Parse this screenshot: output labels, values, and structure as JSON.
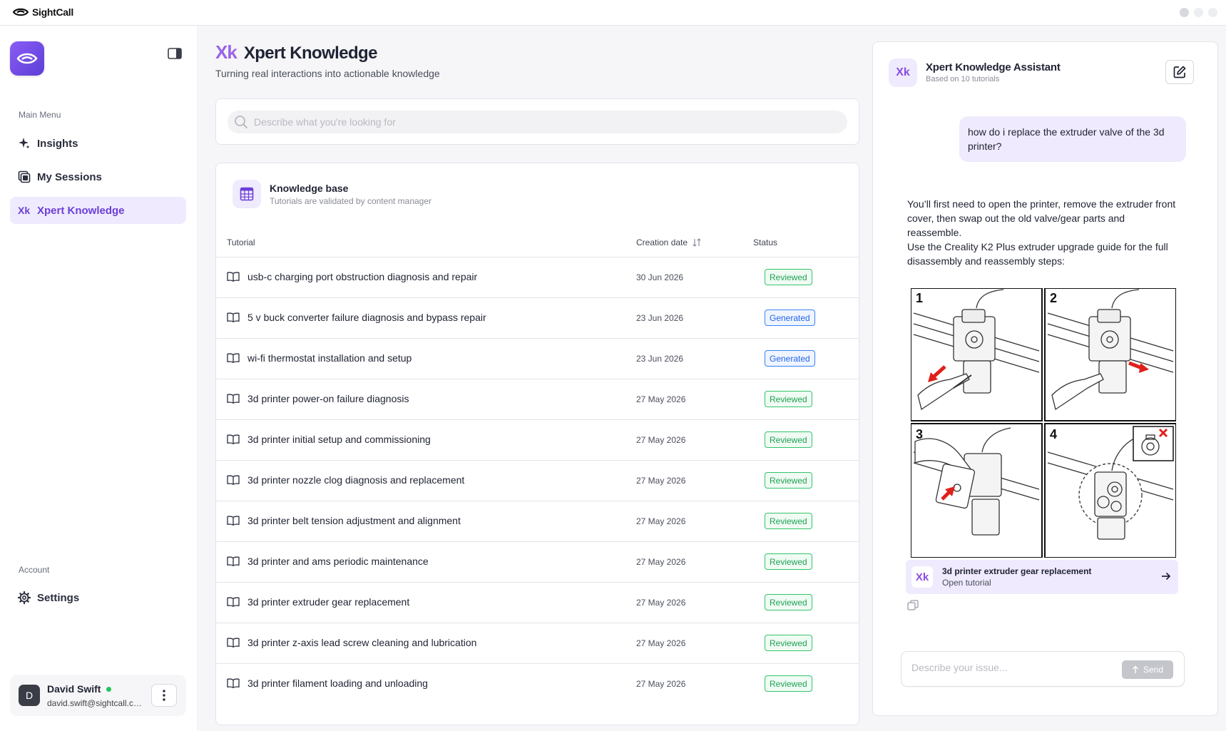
{
  "app": {
    "brand": "SightCall"
  },
  "sidebar": {
    "main_menu_label": "Main Menu",
    "items": [
      {
        "label": "Insights",
        "icon": "sparkle-icon"
      },
      {
        "label": "My Sessions",
        "icon": "sessions-icon"
      },
      {
        "label": "Xpert Knowledge",
        "icon": "xk-icon",
        "active": true,
        "icon_text": "Xk"
      }
    ],
    "account_label": "Account",
    "settings_label": "Settings",
    "user": {
      "initial": "D",
      "name": "David Swift",
      "email": "david.swift@sightcall.com",
      "status": "online"
    }
  },
  "header": {
    "logo_text": "Xk",
    "title": "Xpert Knowledge",
    "subtitle": "Turning real interactions into actionable knowledge"
  },
  "search": {
    "placeholder": "Describe what you're looking for"
  },
  "knowledge_base": {
    "title": "Knowledge base",
    "subtitle": "Tutorials are validated by content manager",
    "columns": {
      "tutorial": "Tutorial",
      "creation_date": "Creation date",
      "status": "Status"
    },
    "rows": [
      {
        "name": "usb-c charging port obstruction diagnosis and repair",
        "date": "30 Jun 2026",
        "status": "Reviewed"
      },
      {
        "name": "5 v buck converter failure diagnosis and bypass repair",
        "date": "23 Jun 2026",
        "status": "Generated"
      },
      {
        "name": "wi-fi thermostat installation and setup",
        "date": "23 Jun 2026",
        "status": "Generated"
      },
      {
        "name": "3d printer power-on failure diagnosis",
        "date": "27 May 2026",
        "status": "Reviewed"
      },
      {
        "name": "3d printer initial setup and commissioning",
        "date": "27 May 2026",
        "status": "Reviewed"
      },
      {
        "name": "3d printer nozzle clog diagnosis and replacement",
        "date": "27 May 2026",
        "status": "Reviewed"
      },
      {
        "name": "3d printer belt tension adjustment and alignment",
        "date": "27 May 2026",
        "status": "Reviewed"
      },
      {
        "name": "3d printer and ams periodic maintenance",
        "date": "27 May 2026",
        "status": "Reviewed"
      },
      {
        "name": "3d printer extruder gear replacement",
        "date": "27 May 2026",
        "status": "Reviewed"
      },
      {
        "name": "3d printer z-axis lead screw cleaning and lubrication",
        "date": "27 May 2026",
        "status": "Reviewed"
      },
      {
        "name": "3d printer filament loading and unloading",
        "date": "27 May 2026",
        "status": "Reviewed"
      }
    ]
  },
  "assistant": {
    "icon_text": "Xk",
    "title": "Xpert Knowledge Assistant",
    "subtitle": "Based on 10 tutorials",
    "user_message": "how do i replace the extruder valve of the 3d printer?",
    "bot_message_p1": "You’ll first need to open the printer, remove the extruder front cover, then swap out the old valve/gear parts and reassemble.",
    "bot_message_p2": "Use the Creality K2 Plus extruder upgrade guide for the full disassembly and reassembly steps:",
    "illustration_steps": [
      "1",
      "2",
      "3",
      "4"
    ],
    "tutorial_link": {
      "icon_text": "Xk",
      "title": "3d printer extruder gear replacement",
      "subtitle": "Open tutorial"
    },
    "composer_placeholder": "Describe your issue...",
    "send_label": "Send"
  },
  "colors": {
    "accent": "#6c3fd8",
    "accent_light": "#efeafd",
    "reviewed": "#1fa253",
    "generated": "#2563eb",
    "online": "#22c55e"
  }
}
